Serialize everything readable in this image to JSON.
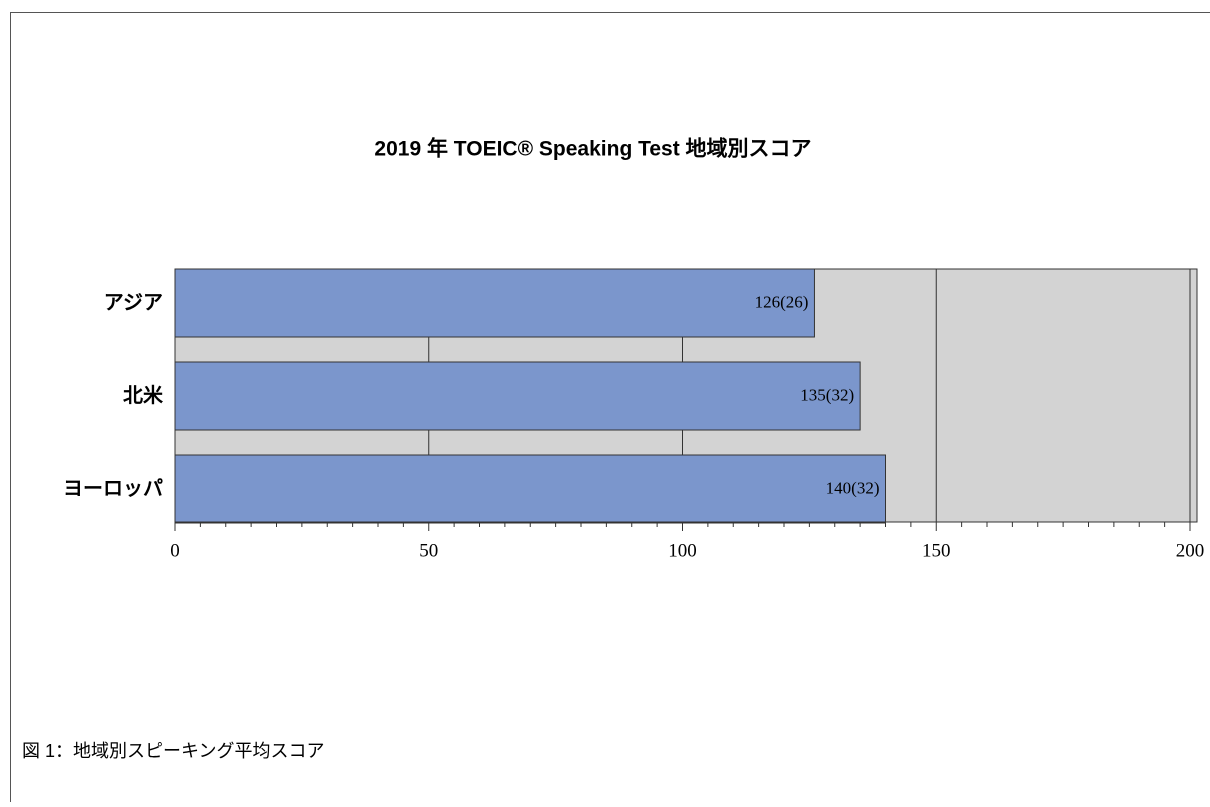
{
  "chart_data": {
    "type": "hbar",
    "title": "2019 年 TOEIC® Speaking Test 地域別スコア",
    "categories": [
      "アジア",
      "北米",
      "ヨーロッパ"
    ],
    "values": [
      126,
      135,
      140
    ],
    "value_labels": [
      "126(26)",
      "135(32)",
      "140(32)"
    ],
    "color": "#7b96cc",
    "xlim": [
      0,
      200
    ],
    "xticks": [
      0,
      50,
      100,
      150,
      200
    ],
    "xminor_ticks": [
      5,
      10,
      15,
      20,
      25,
      30,
      35,
      40,
      45,
      55,
      60,
      65,
      70,
      75,
      80,
      85,
      90,
      95,
      105,
      110,
      115,
      120,
      125,
      130,
      135,
      140,
      145,
      155,
      160,
      165,
      170,
      175,
      180,
      185,
      190,
      195
    ],
    "grid": true,
    "caption": "図 1：地域別スピーキング平均スコア"
  }
}
